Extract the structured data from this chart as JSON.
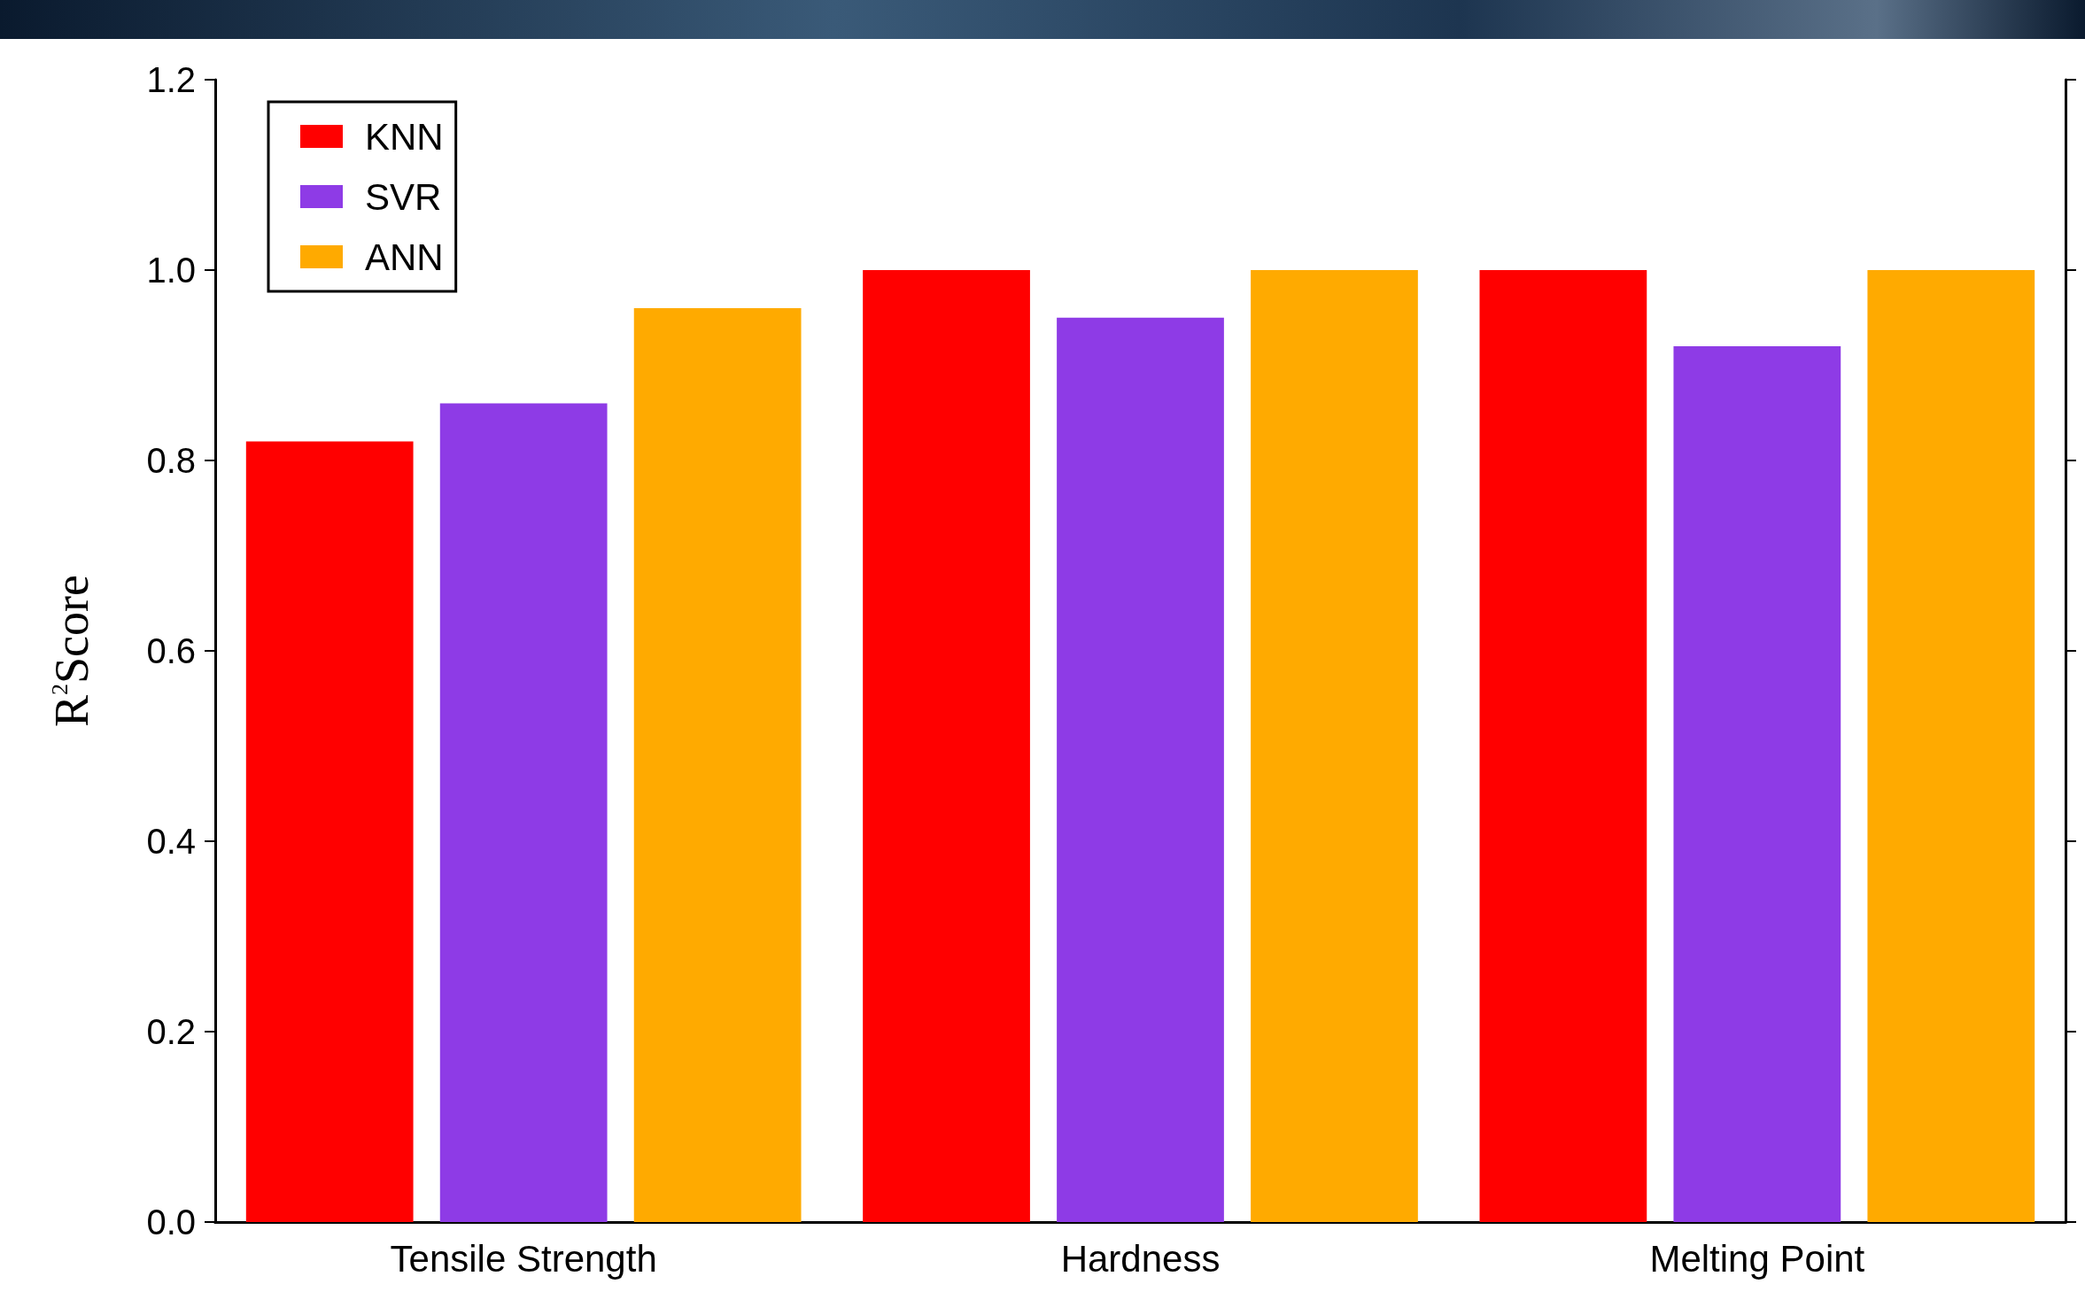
{
  "chart_data": {
    "type": "bar",
    "ylabel": "R$^{2}$Score",
    "categories": [
      "Tensile Strength",
      "Hardness",
      "Melting Point"
    ],
    "series": [
      {
        "name": "KNN",
        "color": "#ff0000",
        "values": [
          0.82,
          1.0,
          1.0
        ]
      },
      {
        "name": "SVR",
        "color": "#8e3be6",
        "values": [
          0.86,
          0.95,
          0.92
        ]
      },
      {
        "name": "ANN",
        "color": "#ffaa00",
        "values": [
          0.96,
          1.0,
          1.0
        ]
      }
    ],
    "ylim": [
      0,
      1.2
    ],
    "yticks": [
      {
        "value": 0,
        "label": "0.0"
      },
      {
        "value": 0.2,
        "label": "0.2"
      },
      {
        "value": 0.4,
        "label": "0.4"
      },
      {
        "value": 0.6,
        "label": "0.6"
      },
      {
        "value": 0.8,
        "label": "0.8"
      },
      {
        "value": 1,
        "label": "1.0"
      },
      {
        "value": 1.2,
        "label": "1.2"
      }
    ],
    "grid": false,
    "legend": "top left"
  }
}
